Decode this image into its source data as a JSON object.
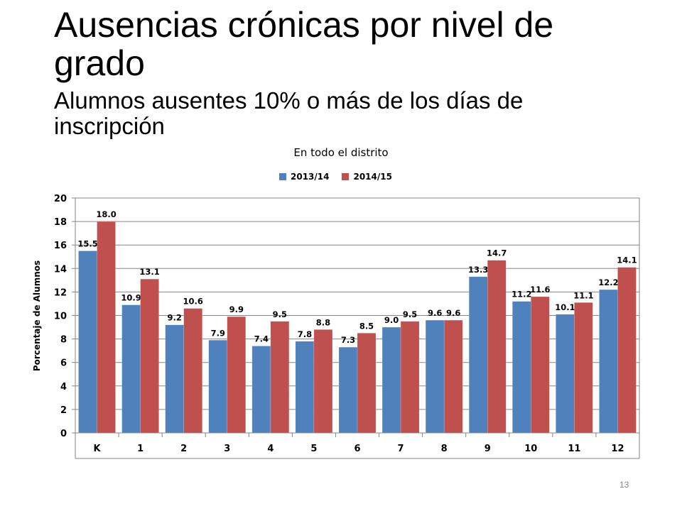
{
  "slide": {
    "title": "Ausencias crónicas por nivel de grado",
    "subtitle": "Alumnos ausentes 10% o más de los días de inscripción",
    "page_number": "13"
  },
  "chart_data": {
    "type": "bar",
    "title": "En todo el distrito",
    "xlabel": "",
    "ylabel": "Porcentaje de Alumnos",
    "categories": [
      "K",
      "1",
      "2",
      "3",
      "4",
      "5",
      "6",
      "7",
      "8",
      "9",
      "10",
      "11",
      "12"
    ],
    "series": [
      {
        "name": "2013/14",
        "color": "#4f81bd",
        "values": [
          15.5,
          10.9,
          9.2,
          7.9,
          7.4,
          7.8,
          7.3,
          9.0,
          9.6,
          13.3,
          11.2,
          10.1,
          12.2
        ]
      },
      {
        "name": "2014/15",
        "color": "#c0504d",
        "values": [
          18.0,
          13.1,
          10.6,
          9.9,
          9.5,
          8.8,
          8.5,
          9.5,
          9.6,
          14.7,
          11.6,
          11.1,
          14.1
        ]
      }
    ],
    "ylim": [
      0,
      20
    ],
    "yticks": [
      0,
      2,
      4,
      6,
      8,
      10,
      12,
      14,
      16,
      18,
      20
    ],
    "grid": true,
    "legend": "top",
    "data_labels": true
  }
}
